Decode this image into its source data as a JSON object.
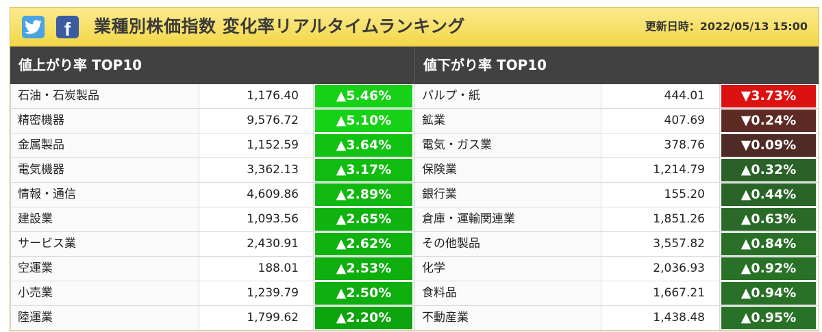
{
  "header": {
    "title": "業種別株価指数 変化率リアルタイムランキング",
    "updated": "更新日時：2022/05/13 15:00",
    "social": [
      {
        "name": "twitter",
        "icon": "twitter-bird-icon",
        "color": "#4aa3e3"
      },
      {
        "name": "facebook",
        "icon": "facebook-f-icon",
        "label": "f",
        "color": "#3b5ca0"
      }
    ]
  },
  "gainers": {
    "heading": "値上がり率 TOP10",
    "rows": [
      {
        "name": "石油・石炭製品",
        "value": "1,176.40",
        "change": "▲5.46%",
        "color": "#16d116"
      },
      {
        "name": "精密機器",
        "value": "9,576.72",
        "change": "▲5.10%",
        "color": "#16d116"
      },
      {
        "name": "金属製品",
        "value": "1,152.59",
        "change": "▲3.64%",
        "color": "#12c212"
      },
      {
        "name": "電気機器",
        "value": "3,362.13",
        "change": "▲3.17%",
        "color": "#10bc10"
      },
      {
        "name": "情報・通信",
        "value": "4,609.86",
        "change": "▲2.89%",
        "color": "#10b810"
      },
      {
        "name": "建設業",
        "value": "1,093.56",
        "change": "▲2.65%",
        "color": "#0fb20f"
      },
      {
        "name": "サービス業",
        "value": "2,430.91",
        "change": "▲2.62%",
        "color": "#0fb20f"
      },
      {
        "name": "空運業",
        "value": "188.01",
        "change": "▲2.53%",
        "color": "#0eae0e"
      },
      {
        "name": "小売業",
        "value": "1,239.79",
        "change": "▲2.50%",
        "color": "#0eae0e"
      },
      {
        "name": "陸運業",
        "value": "1,799.62",
        "change": "▲2.20%",
        "color": "#0da40d"
      }
    ]
  },
  "losers": {
    "heading": "値下がり率 TOP10",
    "rows": [
      {
        "name": "パルプ・紙",
        "value": "444.01",
        "change": "▼3.73%",
        "color": "#dc1212"
      },
      {
        "name": "鉱業",
        "value": "407.69",
        "change": "▼0.24%",
        "color": "#5e2a24"
      },
      {
        "name": "電気・ガス業",
        "value": "378.76",
        "change": "▼0.09%",
        "color": "#4f2b26"
      },
      {
        "name": "保険業",
        "value": "1,214.79",
        "change": "▲0.32%",
        "color": "#2a6128"
      },
      {
        "name": "銀行業",
        "value": "155.20",
        "change": "▲0.44%",
        "color": "#2a6528"
      },
      {
        "name": "倉庫・運輸関連業",
        "value": "1,851.26",
        "change": "▲0.63%",
        "color": "#2a6a28"
      },
      {
        "name": "その他製品",
        "value": "3,557.82",
        "change": "▲0.84%",
        "color": "#296f27"
      },
      {
        "name": "化学",
        "value": "2,036.93",
        "change": "▲0.92%",
        "color": "#297127"
      },
      {
        "name": "食料品",
        "value": "1,667.21",
        "change": "▲0.94%",
        "color": "#297127"
      },
      {
        "name": "不動産業",
        "value": "1,438.48",
        "change": "▲0.95%",
        "color": "#297127"
      }
    ]
  }
}
